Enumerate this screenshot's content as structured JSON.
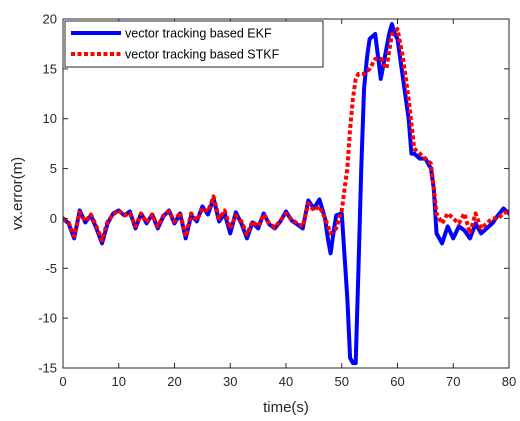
{
  "chart_data": {
    "type": "line",
    "title": "",
    "xlabel": "time(s)",
    "ylabel": "vx.error(m)",
    "xlim": [
      0,
      80
    ],
    "ylim": [
      -15,
      20
    ],
    "xticks": [
      0,
      10,
      20,
      30,
      40,
      50,
      60,
      70,
      80
    ],
    "yticks": [
      -15,
      -10,
      -5,
      0,
      5,
      10,
      15,
      20
    ],
    "grid": false,
    "legend_position": "top-left",
    "series": [
      {
        "name": "vector tracking based EKF",
        "color": "#0000ff",
        "style": "solid",
        "x": [
          0,
          1,
          2,
          3,
          4,
          5,
          6,
          7,
          8,
          9,
          10,
          11,
          12,
          13,
          14,
          15,
          16,
          17,
          18,
          19,
          20,
          21,
          22,
          23,
          24,
          25,
          26,
          27,
          28,
          29,
          30,
          31,
          32,
          33,
          34,
          35,
          36,
          37,
          38,
          39,
          40,
          41,
          42,
          43,
          44,
          45,
          46,
          47,
          47.5,
          48,
          48.5,
          49,
          50,
          51,
          51.5,
          52,
          52.5,
          53,
          53.5,
          54,
          54.5,
          55,
          56,
          57,
          58,
          58.5,
          59,
          59.5,
          60,
          61,
          62,
          62.5,
          63,
          64,
          65,
          66,
          66.5,
          67,
          68,
          69,
          70,
          71,
          72,
          73,
          74,
          75,
          76,
          77,
          78,
          79,
          80
        ],
        "y": [
          0,
          -0.5,
          -2,
          0.8,
          -0.4,
          0.3,
          -1,
          -2.5,
          -0.5,
          0.5,
          0.8,
          0.3,
          0.7,
          -1,
          0.5,
          -0.5,
          0.4,
          -1,
          0.2,
          0.8,
          -0.5,
          0.5,
          -2,
          0.3,
          -0.3,
          1.2,
          0.4,
          2,
          -0.3,
          0.5,
          -1.5,
          0.6,
          -0.5,
          -2,
          -0.4,
          -1,
          0.5,
          -0.6,
          -1,
          -0.3,
          0.7,
          -0.2,
          -0.6,
          -1,
          1.8,
          1,
          1.9,
          0,
          -2,
          -3.5,
          -1.5,
          0.3,
          0.5,
          -8,
          -14,
          -14.5,
          -14.5,
          -5,
          5,
          13,
          16,
          18,
          18.5,
          14,
          17,
          18.5,
          19.5,
          18.5,
          18,
          14,
          10,
          6.5,
          6.5,
          6,
          6,
          5,
          3,
          -1.5,
          -2.5,
          -0.8,
          -2,
          -0.8,
          -1.2,
          -2,
          -0.5,
          -1.5,
          -1,
          -0.5,
          0.3,
          1,
          0.5
        ],
        "linewidth": 4
      },
      {
        "name": "vector tracking based STKF",
        "color": "#ff0000",
        "style": "dotted",
        "x": [
          0,
          1,
          2,
          3,
          4,
          5,
          6,
          7,
          8,
          9,
          10,
          11,
          12,
          13,
          14,
          15,
          16,
          17,
          18,
          19,
          20,
          21,
          22,
          23,
          24,
          25,
          26,
          27,
          28,
          29,
          30,
          31,
          32,
          33,
          34,
          35,
          36,
          37,
          38,
          39,
          40,
          41,
          42,
          43,
          44,
          45,
          46,
          47,
          48,
          49,
          50,
          51,
          51.5,
          52,
          52.5,
          53,
          54,
          55,
          56,
          57,
          58,
          59,
          60,
          61,
          62,
          63,
          64,
          65,
          66,
          67,
          68,
          69,
          70,
          71,
          72,
          73,
          74,
          75,
          76,
          77,
          78,
          79,
          80
        ],
        "y": [
          0,
          -0.4,
          -1.8,
          0.6,
          -0.3,
          0.4,
          -0.8,
          -2.2,
          -0.3,
          0.4,
          0.8,
          0.3,
          0.5,
          -0.8,
          0.5,
          -0.4,
          0.4,
          -0.8,
          0.3,
          0.7,
          -0.3,
          0.6,
          -1.8,
          0.5,
          -0.2,
          1,
          0.7,
          2.2,
          0,
          0.8,
          -1,
          0.3,
          -0.3,
          -1.6,
          -0.3,
          -0.8,
          0.4,
          -0.5,
          -0.9,
          -0.2,
          0.5,
          -0.1,
          -0.5,
          -0.8,
          1.5,
          0.8,
          1.2,
          0,
          -1.5,
          -1,
          0.8,
          5,
          9,
          12,
          14,
          14.5,
          14.5,
          15,
          16,
          16,
          15,
          18.5,
          19,
          16,
          12,
          7,
          6.5,
          6,
          5.5,
          0.5,
          -0.5,
          0.5,
          0,
          -0.5,
          0.5,
          -1.5,
          0.5,
          -1,
          -0.5,
          0,
          0,
          0.5,
          0.8
        ]
      }
    ]
  }
}
